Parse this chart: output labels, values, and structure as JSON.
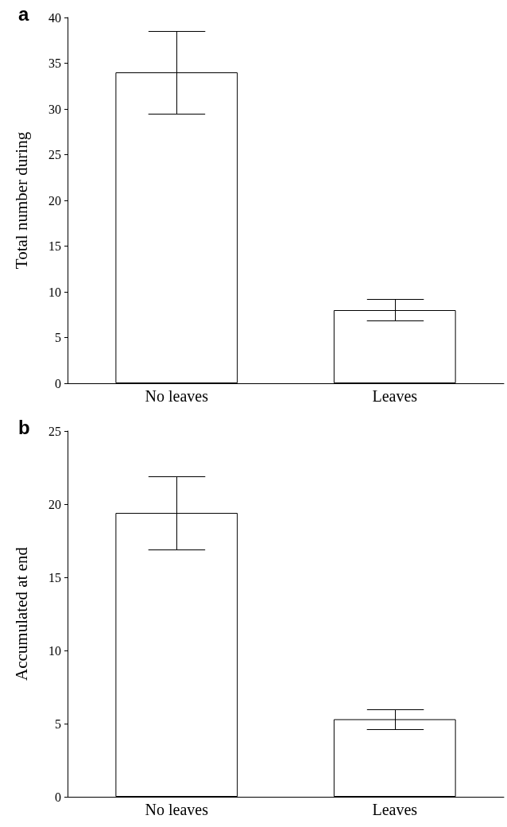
{
  "chart_data": [
    {
      "type": "bar",
      "title": "a",
      "ylabel": "Total number during",
      "categories": [
        "No leaves",
        "Leaves"
      ],
      "values": [
        34,
        8
      ],
      "errors": [
        [
          29.5,
          38.5
        ],
        [
          6.9,
          9.2
        ]
      ],
      "color": "#ffffff",
      "ylim": [
        0,
        40
      ],
      "yticks": [
        0,
        5,
        10,
        15,
        20,
        25,
        30,
        35,
        40
      ],
      "grid": false
    },
    {
      "type": "bar",
      "title": "b",
      "ylabel": "Accumulated at end",
      "categories": [
        "No leaves",
        "Leaves"
      ],
      "values": [
        19.4,
        5.3
      ],
      "errors": [
        [
          16.9,
          21.9
        ],
        [
          4.6,
          6.0
        ]
      ],
      "color": "#ffffff",
      "ylim": [
        0,
        25
      ],
      "yticks": [
        0,
        5,
        10,
        15,
        20,
        25
      ],
      "grid": false
    }
  ]
}
